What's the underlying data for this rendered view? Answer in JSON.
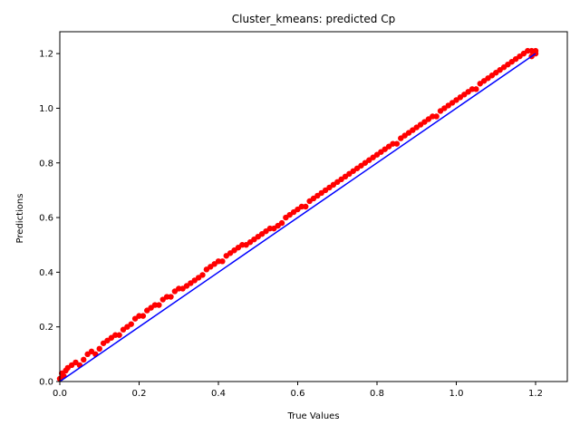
{
  "chart_data": {
    "type": "scatter",
    "title": "Cluster_kmeans: predicted Cp",
    "xlabel": "True Values",
    "ylabel": "Predictions",
    "xlim": [
      0,
      1.28
    ],
    "ylim": [
      0,
      1.28
    ],
    "xticks": [
      0.0,
      0.2,
      0.4,
      0.6,
      0.8,
      1.0,
      1.2
    ],
    "xtick_labels": [
      "0.0",
      "0.2",
      "0.4",
      "0.6",
      "0.8",
      "1.0",
      "1.2"
    ],
    "yticks": [
      0.0,
      0.2,
      0.4,
      0.6,
      0.8,
      1.0,
      1.2
    ],
    "ytick_labels": [
      "0.0",
      "0.2",
      "0.4",
      "0.6",
      "0.8",
      "1.0",
      "1.2"
    ],
    "grid": false,
    "scatter_color": "#ff0000",
    "line_color": "#0000ff",
    "series": [
      {
        "type": "scatter",
        "color": "#ff0000",
        "points": [
          [
            0.0,
            0.01
          ],
          [
            0.005,
            0.03
          ],
          [
            0.01,
            0.02
          ],
          [
            0.015,
            0.04
          ],
          [
            0.02,
            0.05
          ],
          [
            0.03,
            0.06
          ],
          [
            0.04,
            0.07
          ],
          [
            0.05,
            0.06
          ],
          [
            0.06,
            0.08
          ],
          [
            0.07,
            0.1
          ],
          [
            0.08,
            0.11
          ],
          [
            0.09,
            0.1
          ],
          [
            0.1,
            0.12
          ],
          [
            0.11,
            0.14
          ],
          [
            0.12,
            0.15
          ],
          [
            0.13,
            0.16
          ],
          [
            0.14,
            0.17
          ],
          [
            0.15,
            0.17
          ],
          [
            0.16,
            0.19
          ],
          [
            0.17,
            0.2
          ],
          [
            0.18,
            0.21
          ],
          [
            0.19,
            0.23
          ],
          [
            0.2,
            0.24
          ],
          [
            0.21,
            0.24
          ],
          [
            0.22,
            0.26
          ],
          [
            0.23,
            0.27
          ],
          [
            0.24,
            0.28
          ],
          [
            0.25,
            0.28
          ],
          [
            0.26,
            0.3
          ],
          [
            0.27,
            0.31
          ],
          [
            0.28,
            0.31
          ],
          [
            0.29,
            0.33
          ],
          [
            0.3,
            0.34
          ],
          [
            0.31,
            0.34
          ],
          [
            0.32,
            0.35
          ],
          [
            0.33,
            0.36
          ],
          [
            0.34,
            0.37
          ],
          [
            0.35,
            0.38
          ],
          [
            0.36,
            0.39
          ],
          [
            0.37,
            0.41
          ],
          [
            0.38,
            0.42
          ],
          [
            0.39,
            0.43
          ],
          [
            0.4,
            0.44
          ],
          [
            0.41,
            0.44
          ],
          [
            0.42,
            0.46
          ],
          [
            0.43,
            0.47
          ],
          [
            0.44,
            0.48
          ],
          [
            0.45,
            0.49
          ],
          [
            0.46,
            0.5
          ],
          [
            0.47,
            0.5
          ],
          [
            0.48,
            0.51
          ],
          [
            0.49,
            0.52
          ],
          [
            0.5,
            0.53
          ],
          [
            0.51,
            0.54
          ],
          [
            0.52,
            0.55
          ],
          [
            0.53,
            0.56
          ],
          [
            0.54,
            0.56
          ],
          [
            0.55,
            0.57
          ],
          [
            0.56,
            0.58
          ],
          [
            0.57,
            0.6
          ],
          [
            0.58,
            0.61
          ],
          [
            0.59,
            0.62
          ],
          [
            0.6,
            0.63
          ],
          [
            0.61,
            0.64
          ],
          [
            0.62,
            0.64
          ],
          [
            0.63,
            0.66
          ],
          [
            0.64,
            0.67
          ],
          [
            0.65,
            0.68
          ],
          [
            0.66,
            0.69
          ],
          [
            0.67,
            0.7
          ],
          [
            0.68,
            0.71
          ],
          [
            0.69,
            0.72
          ],
          [
            0.7,
            0.73
          ],
          [
            0.71,
            0.74
          ],
          [
            0.72,
            0.75
          ],
          [
            0.73,
            0.76
          ],
          [
            0.74,
            0.77
          ],
          [
            0.75,
            0.78
          ],
          [
            0.76,
            0.79
          ],
          [
            0.77,
            0.8
          ],
          [
            0.78,
            0.81
          ],
          [
            0.79,
            0.82
          ],
          [
            0.8,
            0.83
          ],
          [
            0.81,
            0.84
          ],
          [
            0.82,
            0.85
          ],
          [
            0.83,
            0.86
          ],
          [
            0.84,
            0.87
          ],
          [
            0.85,
            0.87
          ],
          [
            0.86,
            0.89
          ],
          [
            0.87,
            0.9
          ],
          [
            0.88,
            0.91
          ],
          [
            0.89,
            0.92
          ],
          [
            0.9,
            0.93
          ],
          [
            0.91,
            0.94
          ],
          [
            0.92,
            0.95
          ],
          [
            0.93,
            0.96
          ],
          [
            0.94,
            0.97
          ],
          [
            0.95,
            0.97
          ],
          [
            0.96,
            0.99
          ],
          [
            0.97,
            1.0
          ],
          [
            0.98,
            1.01
          ],
          [
            0.99,
            1.02
          ],
          [
            1.0,
            1.03
          ],
          [
            1.01,
            1.04
          ],
          [
            1.02,
            1.05
          ],
          [
            1.03,
            1.06
          ],
          [
            1.04,
            1.07
          ],
          [
            1.05,
            1.07
          ],
          [
            1.06,
            1.09
          ],
          [
            1.07,
            1.1
          ],
          [
            1.08,
            1.11
          ],
          [
            1.09,
            1.12
          ],
          [
            1.1,
            1.13
          ],
          [
            1.11,
            1.14
          ],
          [
            1.12,
            1.15
          ],
          [
            1.13,
            1.16
          ],
          [
            1.14,
            1.17
          ],
          [
            1.15,
            1.18
          ],
          [
            1.16,
            1.19
          ],
          [
            1.17,
            1.2
          ],
          [
            1.18,
            1.21
          ],
          [
            1.19,
            1.21
          ],
          [
            1.2,
            1.21
          ],
          [
            1.2,
            1.2
          ],
          [
            1.19,
            1.19
          ]
        ]
      },
      {
        "type": "line",
        "color": "#0000ff",
        "x": [
          0.0,
          1.2
        ],
        "y": [
          0.0,
          1.2
        ]
      }
    ]
  }
}
